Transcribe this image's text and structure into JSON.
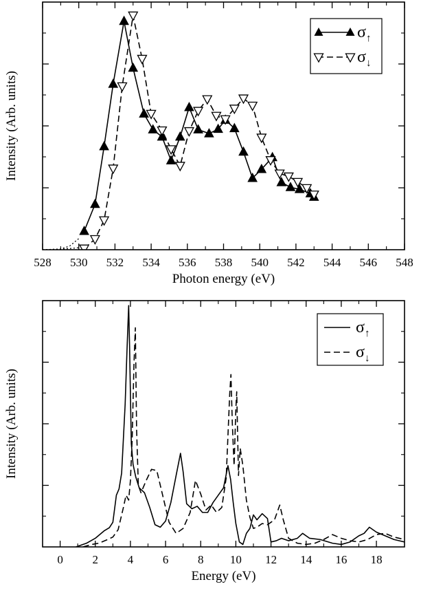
{
  "chart_data": [
    {
      "type": "line",
      "title": "",
      "xlabel": "Photon energy (eV)",
      "ylabel": "Intensity (Arb. units)",
      "xlim": [
        528,
        548
      ],
      "ylim": [
        0,
        100
      ],
      "xticks": [
        528,
        530,
        532,
        534,
        536,
        538,
        540,
        542,
        544,
        546,
        548
      ],
      "xtick_labels": [
        "528",
        "530",
        "532",
        "534",
        "536",
        "538",
        "540",
        "542",
        "544",
        "546",
        "548"
      ],
      "yticks": [
        25,
        50,
        75
      ],
      "grid": false,
      "legend_position": "top-right",
      "series": [
        {
          "name": "σ↑",
          "label_base": "σ",
          "label_sub": "↑",
          "style": "solid",
          "marker": "filled-triangle-up",
          "x": [
            530.3,
            530.9,
            531.4,
            531.9,
            532.5,
            533.0,
            533.6,
            534.1,
            534.6,
            535.1,
            535.6,
            536.1,
            536.6,
            537.2,
            537.7,
            538.1,
            538.6,
            539.1,
            539.6,
            540.1,
            540.7,
            541.2,
            541.7,
            542.2,
            542.8,
            543.0
          ],
          "y": [
            7.5,
            18.4,
            41.7,
            66.9,
            92.3,
            73.4,
            54.9,
            48.5,
            45.6,
            36.0,
            45.6,
            57.5,
            48.5,
            46.9,
            48.7,
            52.4,
            49.0,
            39.5,
            28.9,
            32.5,
            37.3,
            27.2,
            25.2,
            24.4,
            22.7,
            21.3
          ],
          "line_only_x": [
            528.0,
            529.0,
            529.5,
            530.0
          ],
          "line_only_y": [
            0.0,
            0.3,
            1.5,
            4.5
          ]
        },
        {
          "name": "σ↓",
          "label_base": "σ",
          "label_sub": "↓",
          "style": "dashed",
          "marker": "open-triangle-down",
          "x": [
            530.3,
            530.9,
            531.4,
            531.9,
            532.4,
            533.0,
            533.5,
            534.0,
            534.6,
            535.1,
            535.6,
            536.1,
            536.6,
            537.1,
            537.6,
            538.1,
            538.6,
            539.1,
            539.6,
            540.1,
            540.6,
            541.1,
            541.6,
            542.1,
            542.6,
            543.0
          ],
          "y": [
            0.5,
            4.3,
            11.9,
            32.8,
            66.0,
            94.6,
            77.1,
            54.9,
            48.2,
            40.6,
            33.9,
            47.9,
            56.1,
            60.8,
            54.1,
            52.7,
            57.0,
            61.1,
            58.2,
            45.3,
            36.2,
            30.8,
            29.6,
            27.4,
            24.9,
            22.3
          ],
          "line_only_x": [
            528.0,
            529.0,
            529.5,
            530.0
          ],
          "line_only_y": [
            0.0,
            0.2,
            0.5,
            0.8
          ]
        }
      ]
    },
    {
      "type": "line",
      "title": "",
      "xlabel": "Energy (eV)",
      "ylabel": "Intensity (Arb. units)",
      "xlim": [
        -1,
        19.6
      ],
      "ylim": [
        0,
        100
      ],
      "xticks": [
        0,
        2,
        4,
        6,
        8,
        10,
        12,
        14,
        16,
        18
      ],
      "xtick_labels": [
        "0",
        "2",
        "4",
        "6",
        "8",
        "10",
        "12",
        "14",
        "16",
        "18"
      ],
      "yticks": [
        25,
        50,
        75
      ],
      "grid": false,
      "legend_position": "top-right",
      "series": [
        {
          "name": "σ↑",
          "label_base": "σ",
          "label_sub": "↑",
          "style": "solid",
          "x": [
            0.9,
            1.5,
            2.0,
            2.5,
            2.8,
            3.0,
            3.2,
            3.35,
            3.5,
            3.6,
            3.7,
            3.8,
            3.9,
            3.95,
            4.05,
            4.15,
            4.3,
            4.5,
            4.8,
            5.1,
            5.4,
            5.7,
            6.0,
            6.3,
            6.6,
            6.85,
            7.0,
            7.2,
            7.5,
            7.8,
            8.1,
            8.4,
            8.7,
            9.0,
            9.3,
            9.55,
            9.7,
            9.85,
            10.0,
            10.2,
            10.4,
            10.6,
            10.8,
            11.0,
            11.2,
            11.5,
            11.8,
            12.0,
            12.3,
            12.6,
            13.0,
            13.5,
            13.8,
            14.2,
            14.8,
            15.5,
            16.0,
            16.5,
            17.0,
            17.3,
            17.6,
            18.0,
            18.5,
            19.0,
            19.6
          ],
          "y": [
            0.0,
            1.5,
            3.5,
            6.5,
            7.8,
            10.0,
            21.0,
            23.5,
            30.0,
            44.0,
            58.0,
            79.0,
            98.0,
            82.0,
            42.0,
            33.5,
            28.5,
            24.0,
            22.0,
            16.0,
            9.0,
            8.0,
            10.5,
            18.0,
            29.0,
            38.0,
            30.5,
            17.5,
            15.5,
            16.5,
            14.0,
            14.0,
            18.0,
            21.0,
            24.0,
            33.0,
            27.5,
            18.0,
            9.5,
            2.0,
            1.0,
            5.5,
            7.5,
            13.0,
            11.0,
            13.5,
            11.5,
            2.0,
            2.5,
            3.5,
            2.5,
            3.5,
            5.5,
            3.5,
            3.0,
            1.5,
            1.0,
            2.0,
            4.5,
            5.5,
            8.0,
            6.0,
            4.5,
            3.0,
            2.0
          ]
        },
        {
          "name": "σ↓",
          "label_base": "σ",
          "label_sub": "↓",
          "style": "dashed",
          "x": [
            1.3,
            1.8,
            2.2,
            2.7,
            3.0,
            3.3,
            3.6,
            3.75,
            3.9,
            4.0,
            4.1,
            4.2,
            4.28,
            4.35,
            4.45,
            4.6,
            4.9,
            5.2,
            5.5,
            5.8,
            6.2,
            6.6,
            7.0,
            7.4,
            7.7,
            8.0,
            8.3,
            8.6,
            8.9,
            9.2,
            9.45,
            9.65,
            9.72,
            9.8,
            9.9,
            10.0,
            10.05,
            10.15,
            10.25,
            10.4,
            10.6,
            10.8,
            11.0,
            11.2,
            11.5,
            11.8,
            12.0,
            12.2,
            12.5,
            12.7,
            13.0,
            13.5,
            14.0,
            14.5,
            15.0,
            15.5,
            16.0,
            16.5,
            17.0,
            17.5,
            18.0,
            18.5,
            19.0,
            19.6
          ],
          "y": [
            0.0,
            1.0,
            1.5,
            3.0,
            4.0,
            7.0,
            16.0,
            21.0,
            19.0,
            27.0,
            44.0,
            74.0,
            89.0,
            48.0,
            25.0,
            22.0,
            27.0,
            31.5,
            31.0,
            22.0,
            10.0,
            5.5,
            7.5,
            14.0,
            27.0,
            21.5,
            15.0,
            17.0,
            14.0,
            16.0,
            28.0,
            62.0,
            70.0,
            50.0,
            33.0,
            56.0,
            63.0,
            29.0,
            40.0,
            33.0,
            19.0,
            12.0,
            7.5,
            8.0,
            9.5,
            9.0,
            10.0,
            11.0,
            17.0,
            11.0,
            3.5,
            1.5,
            1.0,
            1.5,
            3.0,
            5.0,
            3.5,
            2.5,
            2.0,
            3.0,
            5.0,
            5.5,
            4.0,
            3.0
          ]
        }
      ]
    }
  ]
}
